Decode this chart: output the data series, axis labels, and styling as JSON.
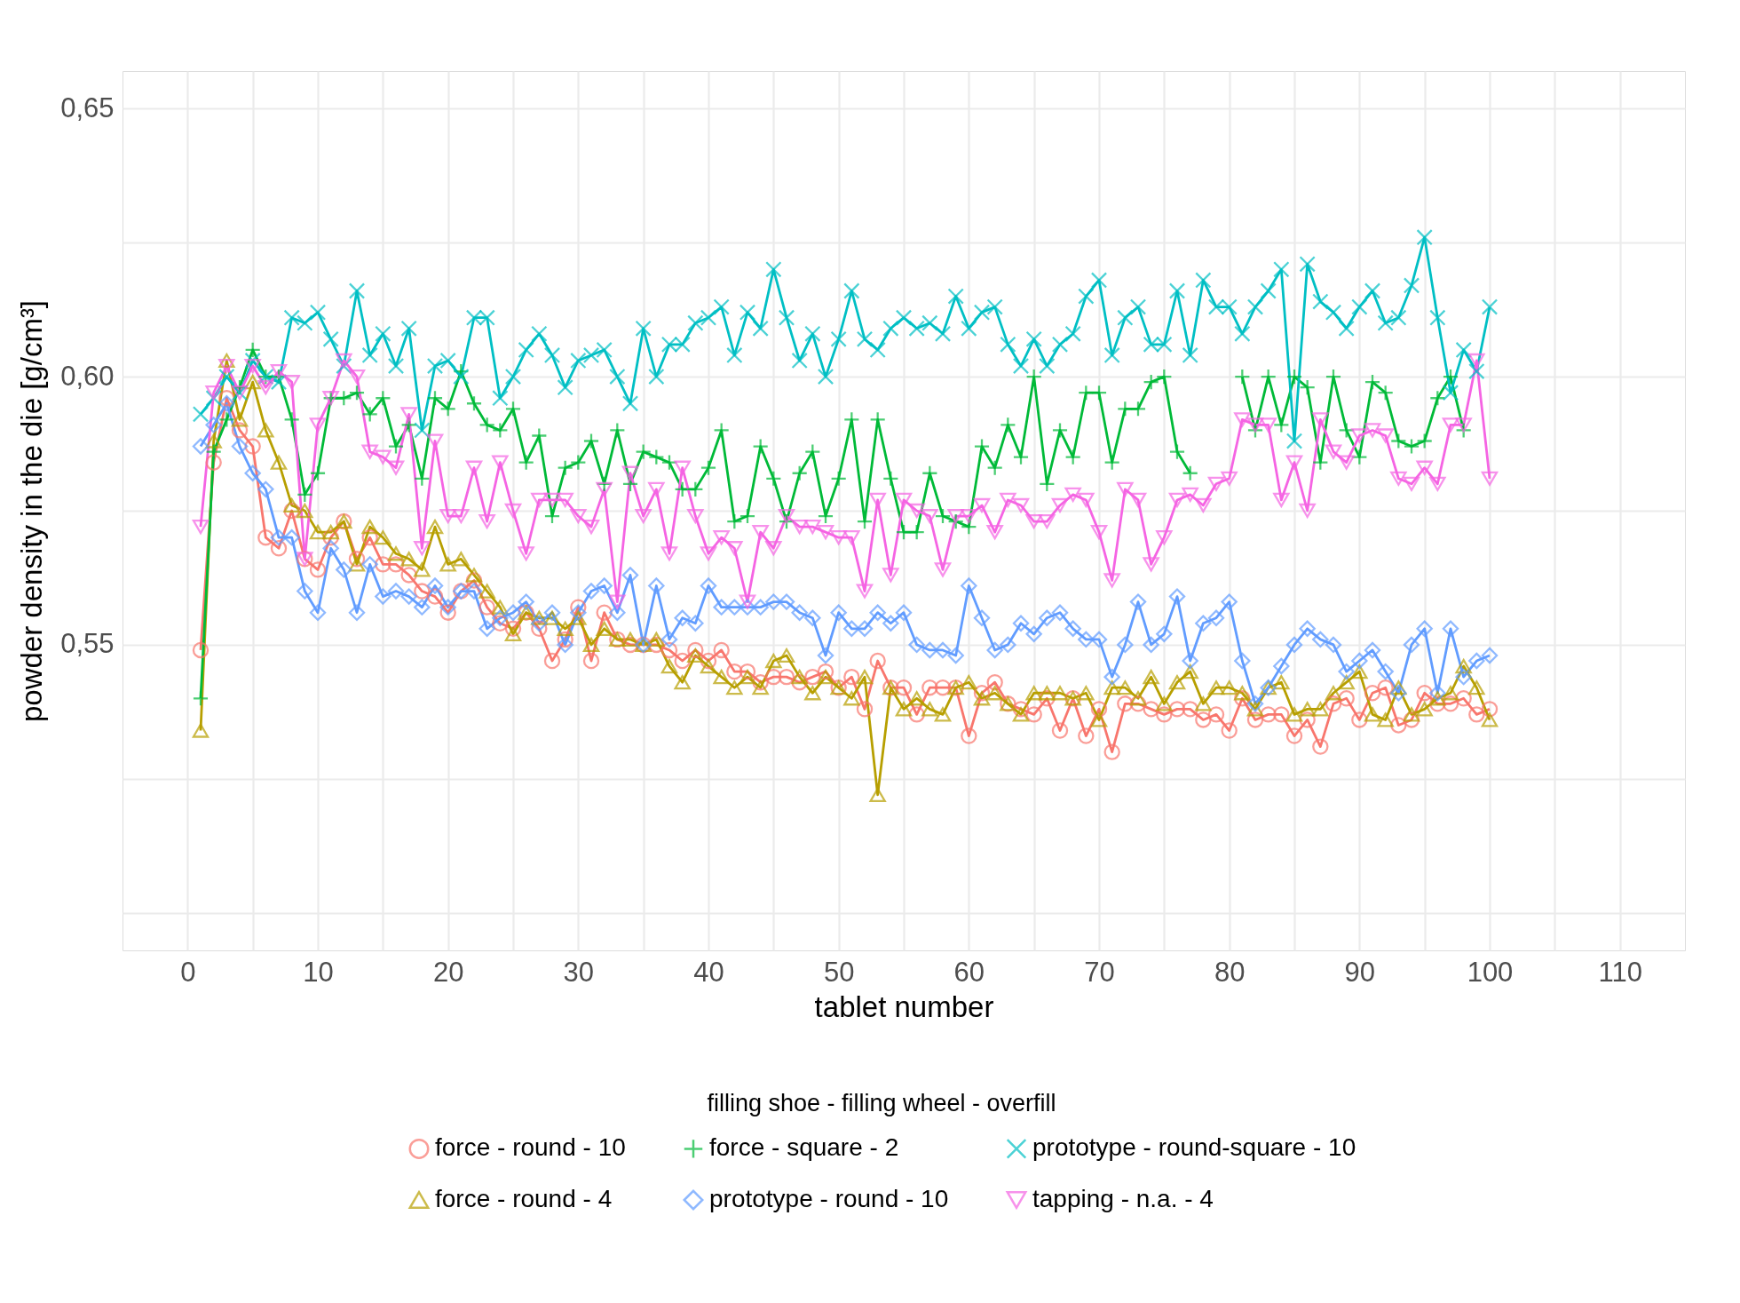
{
  "chart_data": {
    "type": "line",
    "xlabel": "tablet number",
    "ylabel": "powder density in the die [g/cm³]",
    "legend_title": "filling shoe - filling wheel - overfill",
    "legend": "bottom",
    "grid": true,
    "x": [
      1,
      2,
      3,
      4,
      5,
      6,
      7,
      8,
      9,
      10,
      11,
      12,
      13,
      14,
      15,
      16,
      17,
      18,
      19,
      20,
      21,
      22,
      23,
      24,
      25,
      26,
      27,
      28,
      29,
      30,
      31,
      32,
      33,
      34,
      35,
      36,
      37,
      38,
      39,
      40,
      41,
      42,
      43,
      44,
      45,
      46,
      47,
      48,
      49,
      50,
      51,
      52,
      53,
      54,
      55,
      56,
      57,
      58,
      59,
      60,
      61,
      62,
      63,
      64,
      65,
      66,
      67,
      68,
      69,
      70,
      71,
      72,
      73,
      74,
      75,
      76,
      77,
      78,
      79,
      80,
      81,
      82,
      83,
      84,
      85,
      86,
      87,
      88,
      89,
      90,
      91,
      92,
      93,
      94,
      95,
      96,
      97,
      98,
      99,
      100
    ],
    "xlim": [
      -5,
      115
    ],
    "xticks": [
      0,
      {
        "value": 5,
        "label": null
      },
      10,
      {
        "value": 15,
        "label": null
      },
      20,
      {
        "value": 25,
        "label": null
      },
      30,
      {
        "value": 35,
        "label": null
      },
      40,
      {
        "value": 45,
        "label": null
      },
      50,
      {
        "value": 55,
        "label": null
      },
      60,
      {
        "value": 65,
        "label": null
      },
      70,
      {
        "value": 75,
        "label": null
      },
      80,
      {
        "value": 85,
        "label": null
      },
      90,
      {
        "value": 95,
        "label": null
      },
      100,
      {
        "value": 105,
        "label": null
      },
      110
    ],
    "ylim": [
      0.493,
      0.657
    ],
    "yticks": [
      {
        "value": 0.5,
        "label": null
      },
      {
        "value": 0.525,
        "label": null
      },
      {
        "value": 0.55,
        "label": "0,55"
      },
      {
        "value": 0.575,
        "label": null
      },
      {
        "value": 0.6,
        "label": "0,60"
      },
      {
        "value": 0.625,
        "label": null
      },
      {
        "value": 0.65,
        "label": "0,65"
      }
    ],
    "series": [
      {
        "name": "force - round - 10",
        "color": "#f8766d",
        "marker": "circle",
        "values": [
          0.549,
          0.584,
          0.596,
          0.59,
          0.587,
          0.57,
          0.568,
          0.575,
          0.566,
          0.564,
          0.57,
          0.573,
          0.566,
          0.57,
          0.565,
          0.565,
          0.563,
          0.56,
          0.559,
          0.556,
          0.56,
          0.562,
          0.557,
          0.554,
          0.553,
          0.556,
          0.553,
          0.547,
          0.551,
          0.557,
          0.547,
          0.556,
          0.551,
          0.55,
          0.55,
          0.55,
          0.549,
          0.547,
          0.549,
          0.547,
          0.549,
          0.545,
          0.545,
          0.543,
          0.544,
          0.544,
          0.543,
          0.544,
          0.545,
          0.542,
          0.544,
          0.538,
          0.547,
          0.542,
          0.542,
          0.537,
          0.542,
          0.542,
          0.542,
          0.533,
          0.541,
          0.543,
          0.539,
          0.538,
          0.537,
          0.54,
          0.534,
          0.54,
          0.533,
          0.538,
          0.53,
          0.539,
          0.539,
          0.538,
          0.537,
          0.538,
          0.538,
          0.536,
          0.537,
          0.534,
          0.54,
          0.536,
          0.537,
          0.537,
          0.533,
          0.536,
          0.531,
          0.539,
          0.54,
          0.536,
          0.541,
          0.542,
          0.535,
          0.536,
          0.541,
          0.539,
          0.539,
          0.54,
          0.537,
          0.538
        ]
      },
      {
        "name": "force - round - 4",
        "color": "#b79f00",
        "marker": "triangle",
        "values": [
          0.534,
          0.588,
          0.603,
          0.592,
          0.599,
          0.59,
          0.584,
          0.576,
          0.575,
          0.571,
          0.571,
          0.573,
          0.565,
          0.572,
          0.57,
          0.567,
          0.566,
          0.564,
          0.572,
          0.565,
          0.566,
          0.563,
          0.56,
          0.557,
          0.552,
          0.556,
          0.555,
          0.555,
          0.553,
          0.555,
          0.55,
          0.553,
          0.551,
          0.551,
          0.55,
          0.551,
          0.546,
          0.543,
          0.548,
          0.546,
          0.544,
          0.542,
          0.544,
          0.542,
          0.547,
          0.548,
          0.544,
          0.541,
          0.544,
          0.542,
          0.54,
          0.544,
          0.522,
          0.542,
          0.538,
          0.54,
          0.538,
          0.537,
          0.542,
          0.543,
          0.54,
          0.541,
          0.539,
          0.537,
          0.541,
          0.541,
          0.541,
          0.54,
          0.541,
          0.536,
          0.542,
          0.542,
          0.54,
          0.544,
          0.539,
          0.543,
          0.545,
          0.539,
          0.542,
          0.542,
          0.541,
          0.538,
          0.542,
          0.543,
          0.537,
          0.538,
          0.538,
          0.541,
          0.543,
          0.545,
          0.537,
          0.536,
          0.542,
          0.537,
          0.538,
          0.54,
          0.541,
          0.546,
          0.542,
          0.536
        ]
      },
      {
        "name": "force - square - 2",
        "color": "#00ba38",
        "marker": "plus",
        "values": [
          0.54,
          0.586,
          0.592,
          0.598,
          0.605,
          0.6,
          0.6,
          0.592,
          0.578,
          0.582,
          0.596,
          0.596,
          0.597,
          0.593,
          0.596,
          0.587,
          0.591,
          0.581,
          0.596,
          0.594,
          0.601,
          0.595,
          0.591,
          0.59,
          0.594,
          0.584,
          0.589,
          0.574,
          0.583,
          0.584,
          0.588,
          0.58,
          0.59,
          0.58,
          0.586,
          0.585,
          0.584,
          0.579,
          0.579,
          0.583,
          0.59,
          0.573,
          0.574,
          0.587,
          0.581,
          0.573,
          0.582,
          0.586,
          0.574,
          0.581,
          0.592,
          0.573,
          0.592,
          0.581,
          0.571,
          0.571,
          0.582,
          0.574,
          0.573,
          0.572,
          0.587,
          0.583,
          0.591,
          0.585,
          0.6,
          0.58,
          0.59,
          0.585,
          0.597,
          0.597,
          0.584,
          0.594,
          0.594,
          0.599,
          0.6,
          0.586,
          0.582,
          null,
          null,
          null,
          0.6,
          0.59,
          0.6,
          0.591,
          0.6,
          0.598,
          0.584,
          0.6,
          0.59,
          0.585,
          0.599,
          0.597,
          0.588,
          0.587,
          0.588,
          0.596,
          0.6,
          0.59,
          null,
          null
        ]
      },
      {
        "name": "prototype - round - 10",
        "color": "#619cff",
        "marker": "diamond",
        "values": [
          0.587,
          0.591,
          0.595,
          0.587,
          0.582,
          0.579,
          0.57,
          0.57,
          0.56,
          0.556,
          0.568,
          0.564,
          0.556,
          0.565,
          0.559,
          0.56,
          0.559,
          0.557,
          0.561,
          0.557,
          0.56,
          0.56,
          0.553,
          0.555,
          0.556,
          0.558,
          0.554,
          0.556,
          0.55,
          0.556,
          0.56,
          0.561,
          0.556,
          0.563,
          0.55,
          0.561,
          0.551,
          0.555,
          0.554,
          0.561,
          0.557,
          0.557,
          0.557,
          0.557,
          0.558,
          0.558,
          0.556,
          0.555,
          0.548,
          0.556,
          0.553,
          0.553,
          0.556,
          0.554,
          0.556,
          0.55,
          0.549,
          0.549,
          0.548,
          0.561,
          0.555,
          0.549,
          0.55,
          0.554,
          0.552,
          0.555,
          0.556,
          0.553,
          0.551,
          0.551,
          0.544,
          0.55,
          0.558,
          0.55,
          0.552,
          0.559,
          0.547,
          0.554,
          0.555,
          0.558,
          0.547,
          0.539,
          0.542,
          0.546,
          0.55,
          0.553,
          0.551,
          0.55,
          0.545,
          0.547,
          0.549,
          0.545,
          0.541,
          0.55,
          0.553,
          0.541,
          0.553,
          0.544,
          0.547,
          0.548
        ]
      },
      {
        "name": "prototype - round-square - 10",
        "color": "#00bfc4",
        "marker": "x",
        "values": [
          0.593,
          0.596,
          0.6,
          0.597,
          0.603,
          0.6,
          0.599,
          0.611,
          0.61,
          0.612,
          0.607,
          0.602,
          0.616,
          0.604,
          0.608,
          0.602,
          0.609,
          0.59,
          0.602,
          0.603,
          0.6,
          0.611,
          0.611,
          0.596,
          0.6,
          0.605,
          0.608,
          0.604,
          0.598,
          0.603,
          0.604,
          0.605,
          0.6,
          0.595,
          0.609,
          0.6,
          0.606,
          0.606,
          0.61,
          0.611,
          0.613,
          0.604,
          0.612,
          0.609,
          0.62,
          0.611,
          0.603,
          0.608,
          0.6,
          0.607,
          0.616,
          0.607,
          0.605,
          0.609,
          0.611,
          0.609,
          0.61,
          0.608,
          0.615,
          0.609,
          0.612,
          0.613,
          0.606,
          0.602,
          0.607,
          0.602,
          0.606,
          0.608,
          0.615,
          0.618,
          0.604,
          0.611,
          0.613,
          0.606,
          0.606,
          0.616,
          0.604,
          0.618,
          0.613,
          0.613,
          0.608,
          0.613,
          0.616,
          0.62,
          0.588,
          0.621,
          0.614,
          0.612,
          0.609,
          0.613,
          0.616,
          0.61,
          0.611,
          0.617,
          0.626,
          0.611,
          0.597,
          0.605,
          0.601,
          0.613
        ]
      },
      {
        "name": "tapping - n.a. - 4",
        "color": "#f564e3",
        "marker": "triangle-down",
        "values": [
          0.572,
          0.597,
          0.602,
          0.597,
          0.602,
          0.598,
          0.601,
          0.599,
          0.566,
          0.591,
          0.596,
          0.603,
          0.6,
          0.586,
          0.585,
          0.583,
          0.593,
          0.568,
          0.588,
          0.574,
          0.574,
          0.583,
          0.573,
          0.584,
          0.575,
          0.567,
          0.577,
          0.577,
          0.577,
          0.574,
          0.572,
          0.579,
          0.558,
          0.582,
          0.574,
          0.579,
          0.567,
          0.583,
          0.574,
          0.567,
          0.57,
          0.568,
          0.558,
          0.571,
          0.568,
          0.574,
          0.572,
          0.572,
          0.571,
          0.57,
          0.57,
          0.56,
          0.577,
          0.563,
          0.577,
          0.575,
          0.574,
          0.564,
          0.574,
          0.574,
          0.576,
          0.571,
          0.577,
          0.576,
          0.573,
          0.573,
          0.576,
          0.578,
          0.577,
          0.571,
          0.562,
          0.579,
          0.577,
          0.565,
          0.57,
          0.577,
          0.578,
          0.576,
          0.58,
          0.581,
          0.592,
          0.591,
          0.591,
          0.577,
          0.584,
          0.575,
          0.592,
          0.586,
          0.584,
          0.589,
          0.59,
          0.589,
          0.581,
          0.58,
          0.583,
          0.58,
          0.591,
          0.591,
          0.603,
          0.581
        ]
      }
    ]
  }
}
